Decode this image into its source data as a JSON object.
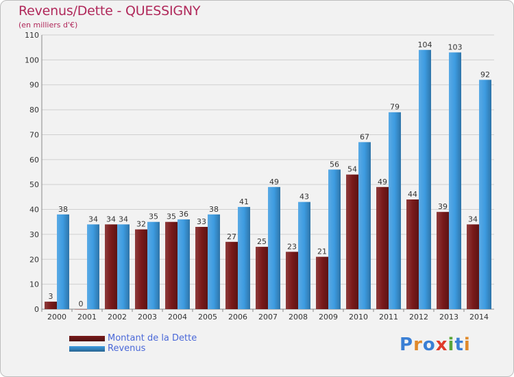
{
  "title": "Revenus/Dette - QUESSIGNY",
  "subtitle": "(en milliers d'€)",
  "logo": {
    "text": "Proxiti",
    "colors": [
      "#3a7fd5",
      "#e0892a",
      "#3a7fd5",
      "#e03a2a",
      "#5aa63a",
      "#3a7fd5",
      "#e0892a"
    ]
  },
  "chart_data": {
    "type": "bar",
    "categories": [
      "2000",
      "2001",
      "2002",
      "2003",
      "2004",
      "2005",
      "2006",
      "2007",
      "2008",
      "2009",
      "2010",
      "2011",
      "2012",
      "2013",
      "2014"
    ],
    "series": [
      {
        "name": "Montant de la Dette",
        "color": "#7a1a1a",
        "values": [
          3,
          0,
          34,
          32,
          35,
          33,
          27,
          25,
          23,
          21,
          54,
          49,
          44,
          39,
          34
        ]
      },
      {
        "name": "Revenus",
        "color": "#3d9be0",
        "values": [
          38,
          34,
          34,
          35,
          36,
          38,
          41,
          49,
          43,
          56,
          67,
          79,
          104,
          103,
          92
        ]
      }
    ],
    "ylim": [
      0,
      110
    ],
    "yticks": [
      0,
      10,
      20,
      30,
      40,
      50,
      60,
      70,
      80,
      90,
      100,
      110
    ],
    "grid": true,
    "legend": "bottom-left"
  }
}
